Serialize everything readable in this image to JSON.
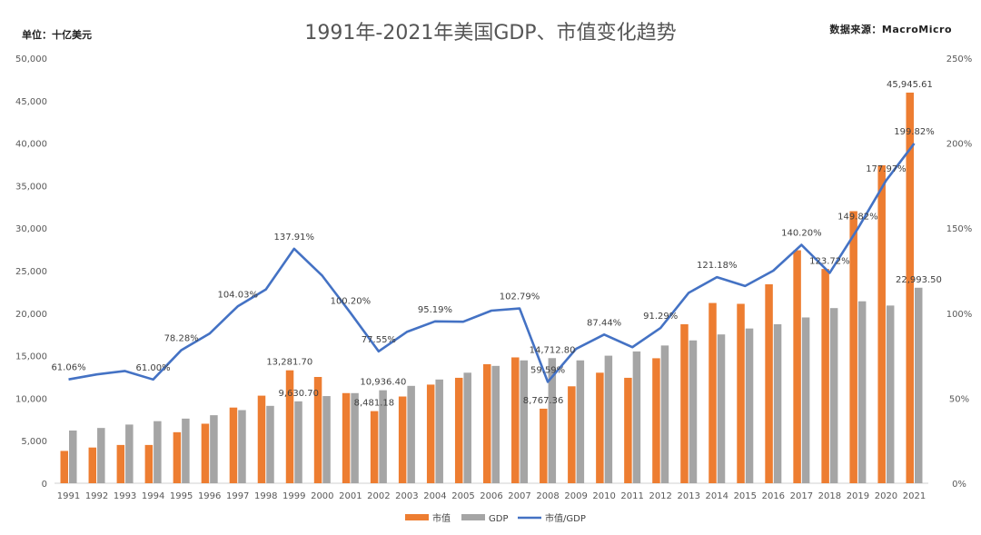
{
  "header": {
    "title": "1991年-2021年美国GDP、市值变化趋势",
    "unit": "单位：十亿美元",
    "source": "数据来源：MacroMicro"
  },
  "chart_data": {
    "type": "bar",
    "title": "1991年-2021年美国GDP、市值变化趋势",
    "categories": [
      "1991",
      "1992",
      "1993",
      "1994",
      "1995",
      "1996",
      "1997",
      "1998",
      "1999",
      "2000",
      "2001",
      "2002",
      "2003",
      "2004",
      "2005",
      "2006",
      "2007",
      "2008",
      "2009",
      "2010",
      "2011",
      "2012",
      "2013",
      "2014",
      "2015",
      "2016",
      "2017",
      "2018",
      "2019",
      "2020",
      "2021"
    ],
    "y_left": {
      "min": 0,
      "max": 50000,
      "ticks": [
        "0",
        "5,000",
        "10,000",
        "15,000",
        "20,000",
        "25,000",
        "30,000",
        "35,000",
        "40,000",
        "45,000",
        "50,000"
      ]
    },
    "y_right": {
      "min": 0,
      "max": 250,
      "ticks": [
        "0%",
        "50%",
        "100%",
        "150%",
        "200%",
        "250%"
      ]
    },
    "series": [
      {
        "name": "市值",
        "type": "bar",
        "axis": "left",
        "color": "#ED7D31",
        "values": [
          3800,
          4200,
          4500,
          4500,
          6000,
          7000,
          8900,
          10300,
          13281.7,
          12500,
          10600,
          8481.18,
          10200,
          11600,
          12400,
          14000,
          14800,
          8767.36,
          11400,
          13000,
          12400,
          14700,
          18700,
          21200,
          21100,
          23400,
          27400,
          25200,
          32000,
          37400,
          45945.61
        ]
      },
      {
        "name": "GDP",
        "type": "bar",
        "axis": "left",
        "color": "#A5A5A5",
        "values": [
          6200,
          6500,
          6900,
          7300,
          7600,
          8000,
          8600,
          9100,
          9630.7,
          10250,
          10600,
          10936.4,
          11450,
          12200,
          13000,
          13800,
          14450,
          14712.8,
          14450,
          15000,
          15500,
          16200,
          16800,
          17500,
          18200,
          18700,
          19500,
          20600,
          21400,
          20900,
          22993.5
        ]
      },
      {
        "name": "市值/GDP",
        "type": "line",
        "axis": "right",
        "color": "#4472C4",
        "values": [
          61.06,
          64,
          66,
          61.0,
          78.28,
          88,
          104.03,
          114,
          137.91,
          122,
          100.2,
          77.55,
          89,
          95.19,
          95,
          101.5,
          102.79,
          59.59,
          79,
          87.44,
          80,
          91.29,
          112,
          121.18,
          116,
          125,
          140.2,
          123.72,
          149.82,
          177.97,
          199.82
        ]
      }
    ],
    "data_labels": [
      {
        "series": "市值/GDP",
        "index": 0,
        "text": "61.06%"
      },
      {
        "series": "市值/GDP",
        "index": 3,
        "text": "61.00%"
      },
      {
        "series": "市值/GDP",
        "index": 4,
        "text": "78.28%"
      },
      {
        "series": "市值/GDP",
        "index": 6,
        "text": "104.03%"
      },
      {
        "series": "市值/GDP",
        "index": 8,
        "text": "137.91%"
      },
      {
        "series": "市值/GDP",
        "index": 10,
        "text": "100.20%"
      },
      {
        "series": "市值/GDP",
        "index": 11,
        "text": "77.55%"
      },
      {
        "series": "市值/GDP",
        "index": 13,
        "text": "95.19%"
      },
      {
        "series": "市值/GDP",
        "index": 16,
        "text": "102.79%"
      },
      {
        "series": "市值/GDP",
        "index": 17,
        "text": "59.59%"
      },
      {
        "series": "市值/GDP",
        "index": 19,
        "text": "87.44%"
      },
      {
        "series": "市值/GDP",
        "index": 21,
        "text": "91.29%"
      },
      {
        "series": "市值/GDP",
        "index": 23,
        "text": "121.18%"
      },
      {
        "series": "市值/GDP",
        "index": 26,
        "text": "140.20%"
      },
      {
        "series": "市值/GDP",
        "index": 27,
        "text": "123.72%"
      },
      {
        "series": "市值/GDP",
        "index": 28,
        "text": "149.82%"
      },
      {
        "series": "市值/GDP",
        "index": 29,
        "text": "177.97%"
      },
      {
        "series": "市值/GDP",
        "index": 30,
        "text": "199.82%"
      },
      {
        "series": "市值",
        "index": 8,
        "text": "13,281.70"
      },
      {
        "series": "市值",
        "index": 11,
        "text": "8,481.18"
      },
      {
        "series": "市值",
        "index": 17,
        "text": "8,767.36"
      },
      {
        "series": "市值",
        "index": 30,
        "text": "45,945.61"
      },
      {
        "series": "GDP",
        "index": 8,
        "text": "9,630.70"
      },
      {
        "series": "GDP",
        "index": 11,
        "text": "10,936.40"
      },
      {
        "series": "GDP",
        "index": 17,
        "text": "14,712.80"
      },
      {
        "series": "GDP",
        "index": 30,
        "text": "22,993.50"
      }
    ],
    "legend": {
      "position": "bottom",
      "items": [
        "市值",
        "GDP",
        "市值/GDP"
      ]
    },
    "grid": false
  }
}
